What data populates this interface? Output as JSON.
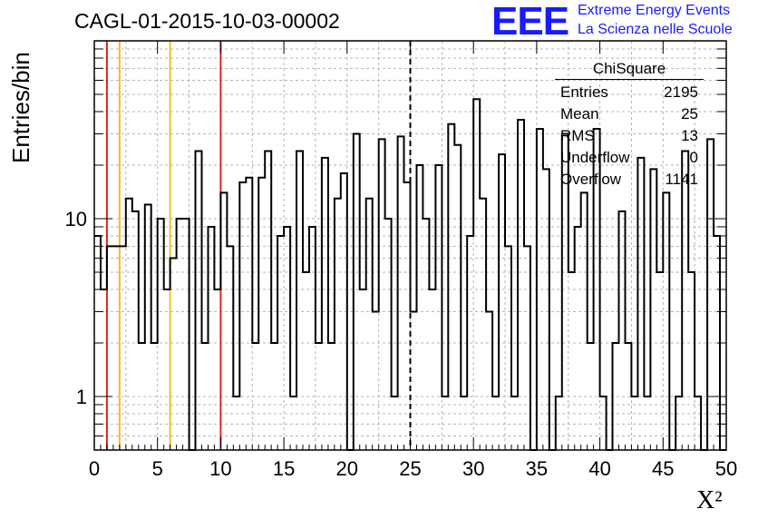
{
  "header": {
    "title": "CAGL-01-2015-10-03-00002",
    "logo_mark": "EEE",
    "logo_line1": "Extreme Energy Events",
    "logo_line2": "La Scienza nelle Scuole"
  },
  "stats": {
    "title": "ChiSquare",
    "rows": [
      {
        "label": "Entries",
        "value": "2195"
      },
      {
        "label": "Mean",
        "value": "25"
      },
      {
        "label": "RMS",
        "value": "13"
      },
      {
        "label": "Underflow",
        "value": "0"
      },
      {
        "label": "Overflow",
        "value": "1141"
      }
    ]
  },
  "chart_data": {
    "type": "histogram",
    "title": "CAGL-01-2015-10-03-00002",
    "xlabel": "X²",
    "ylabel": "Entries/bin",
    "xlim": [
      0,
      50
    ],
    "ylim": [
      0.5,
      100
    ],
    "yscale": "log",
    "grid": true,
    "x_ticks": [
      0,
      5,
      10,
      15,
      20,
      25,
      30,
      35,
      40,
      45,
      50
    ],
    "x_tick_labels": [
      "0",
      "5",
      "10",
      "15",
      "20",
      "25",
      "30",
      "35",
      "40",
      "45",
      "50"
    ],
    "y_ticks": [
      1,
      10
    ],
    "y_tick_labels": [
      "1",
      "10"
    ],
    "bin_width": 0.5,
    "values": [
      8,
      4,
      7,
      7,
      7,
      13,
      11,
      2,
      12,
      2,
      10,
      4,
      6,
      10,
      10,
      0,
      24,
      2,
      9,
      4,
      14,
      7,
      1,
      16,
      17,
      2,
      17,
      24,
      2,
      8,
      9,
      1,
      24,
      5,
      9,
      2,
      22,
      2,
      13,
      18,
      0,
      30,
      4,
      13,
      3,
      28,
      10,
      1,
      29,
      16,
      3,
      20,
      10,
      4,
      20,
      1,
      34,
      26,
      1,
      8,
      47,
      13,
      3,
      1,
      23,
      7,
      1,
      36,
      7,
      0,
      32,
      19,
      0,
      1,
      30,
      5,
      9,
      14,
      2,
      32,
      1,
      0,
      2,
      11,
      2,
      1,
      22,
      1,
      19,
      5,
      14,
      0,
      1,
      24,
      5,
      1,
      0,
      28,
      8,
      0
    ],
    "vlines": [
      {
        "x": 1,
        "color": "#e8231b",
        "style": "solid"
      },
      {
        "x": 2,
        "color": "#f2be25",
        "style": "solid"
      },
      {
        "x": 6,
        "color": "#f2be25",
        "style": "solid"
      },
      {
        "x": 10,
        "color": "#e8231b",
        "style": "solid"
      },
      {
        "x": 25,
        "color": "#000000",
        "style": "dashed"
      }
    ]
  }
}
